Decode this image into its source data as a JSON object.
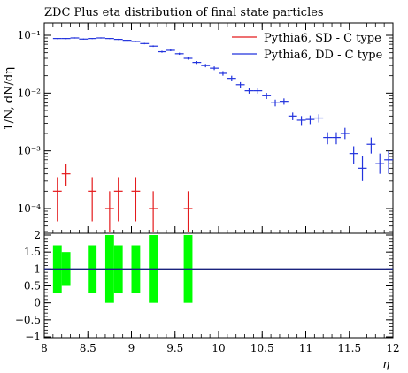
{
  "chart_data": {
    "type": "scatter",
    "title": "ZDC Plus eta distribution of final state particles",
    "xlabel": "η",
    "ylabel": "1/N, dN/dη",
    "xlim": [
      8,
      12
    ],
    "ylim": [
      4e-05,
      0.13
    ],
    "log_y": true,
    "legend_position": "top-right",
    "x_ticks": [
      "8",
      "8.5",
      "9",
      "9.5",
      "10",
      "10.5",
      "11",
      "11.5",
      "12"
    ],
    "y_ticks": [
      "10⁻⁴",
      "10⁻³",
      "10⁻²",
      "10⁻¹"
    ],
    "series": [
      {
        "name": "Pythia6, SD - C type",
        "color": "#e41a1c",
        "points": [
          {
            "x": 8.15,
            "y": 0.0002,
            "ylo": 6e-05,
            "yhi": 0.00035,
            "xerr": 0.05
          },
          {
            "x": 8.25,
            "y": 0.0004,
            "ylo": 0.00025,
            "yhi": 0.0006,
            "xerr": 0.05
          },
          {
            "x": 8.55,
            "y": 0.0002,
            "ylo": 6e-05,
            "yhi": 0.00035,
            "xerr": 0.05
          },
          {
            "x": 8.75,
            "y": 0.0001,
            "ylo": 4e-05,
            "yhi": 0.0002,
            "xerr": 0.05
          },
          {
            "x": 8.85,
            "y": 0.0002,
            "ylo": 6e-05,
            "yhi": 0.00035,
            "xerr": 0.05
          },
          {
            "x": 9.05,
            "y": 0.0002,
            "ylo": 6e-05,
            "yhi": 0.00035,
            "xerr": 0.05
          },
          {
            "x": 9.25,
            "y": 0.0001,
            "ylo": 4e-05,
            "yhi": 0.0002,
            "xerr": 0.05
          },
          {
            "x": 9.65,
            "y": 0.0001,
            "ylo": 4e-05,
            "yhi": 0.0002,
            "xerr": 0.05
          }
        ]
      },
      {
        "name": "Pythia6, DD - C type",
        "color": "#2233dd",
        "points": [
          {
            "x": 8.15,
            "y": 0.088,
            "ylo": 0.086,
            "yhi": 0.09,
            "xerr": 0.05
          },
          {
            "x": 8.25,
            "y": 0.088,
            "ylo": 0.086,
            "yhi": 0.09,
            "xerr": 0.05
          },
          {
            "x": 8.35,
            "y": 0.09,
            "ylo": 0.088,
            "yhi": 0.092,
            "xerr": 0.05
          },
          {
            "x": 8.45,
            "y": 0.086,
            "ylo": 0.084,
            "yhi": 0.088,
            "xerr": 0.05
          },
          {
            "x": 8.55,
            "y": 0.088,
            "ylo": 0.086,
            "yhi": 0.09,
            "xerr": 0.05
          },
          {
            "x": 8.65,
            "y": 0.09,
            "ylo": 0.088,
            "yhi": 0.092,
            "xerr": 0.05
          },
          {
            "x": 8.75,
            "y": 0.088,
            "ylo": 0.086,
            "yhi": 0.09,
            "xerr": 0.05
          },
          {
            "x": 8.85,
            "y": 0.085,
            "ylo": 0.083,
            "yhi": 0.087,
            "xerr": 0.05
          },
          {
            "x": 8.95,
            "y": 0.082,
            "ylo": 0.08,
            "yhi": 0.084,
            "xerr": 0.05
          },
          {
            "x": 9.05,
            "y": 0.078,
            "ylo": 0.076,
            "yhi": 0.08,
            "xerr": 0.05
          },
          {
            "x": 9.15,
            "y": 0.072,
            "ylo": 0.07,
            "yhi": 0.074,
            "xerr": 0.05
          },
          {
            "x": 9.25,
            "y": 0.065,
            "ylo": 0.063,
            "yhi": 0.067,
            "xerr": 0.05
          },
          {
            "x": 9.35,
            "y": 0.052,
            "ylo": 0.05,
            "yhi": 0.054,
            "xerr": 0.05
          },
          {
            "x": 9.45,
            "y": 0.055,
            "ylo": 0.053,
            "yhi": 0.057,
            "xerr": 0.05
          },
          {
            "x": 9.55,
            "y": 0.048,
            "ylo": 0.046,
            "yhi": 0.05,
            "xerr": 0.05
          },
          {
            "x": 9.65,
            "y": 0.04,
            "ylo": 0.038,
            "yhi": 0.042,
            "xerr": 0.05
          },
          {
            "x": 9.75,
            "y": 0.034,
            "ylo": 0.032,
            "yhi": 0.036,
            "xerr": 0.05
          },
          {
            "x": 9.85,
            "y": 0.03,
            "ylo": 0.028,
            "yhi": 0.032,
            "xerr": 0.05
          },
          {
            "x": 9.95,
            "y": 0.027,
            "ylo": 0.025,
            "yhi": 0.029,
            "xerr": 0.05
          },
          {
            "x": 10.05,
            "y": 0.022,
            "ylo": 0.02,
            "yhi": 0.024,
            "xerr": 0.05
          },
          {
            "x": 10.15,
            "y": 0.018,
            "ylo": 0.016,
            "yhi": 0.02,
            "xerr": 0.05
          },
          {
            "x": 10.25,
            "y": 0.014,
            "ylo": 0.0125,
            "yhi": 0.0155,
            "xerr": 0.05
          },
          {
            "x": 10.35,
            "y": 0.011,
            "ylo": 0.0098,
            "yhi": 0.0122,
            "xerr": 0.05
          },
          {
            "x": 10.45,
            "y": 0.011,
            "ylo": 0.0098,
            "yhi": 0.0122,
            "xerr": 0.05
          },
          {
            "x": 10.55,
            "y": 0.009,
            "ylo": 0.0079,
            "yhi": 0.0101,
            "xerr": 0.05
          },
          {
            "x": 10.65,
            "y": 0.0068,
            "ylo": 0.0059,
            "yhi": 0.0077,
            "xerr": 0.05
          },
          {
            "x": 10.75,
            "y": 0.0072,
            "ylo": 0.0063,
            "yhi": 0.0081,
            "xerr": 0.05
          },
          {
            "x": 10.85,
            "y": 0.004,
            "ylo": 0.0034,
            "yhi": 0.0046,
            "xerr": 0.05
          },
          {
            "x": 10.95,
            "y": 0.0034,
            "ylo": 0.0028,
            "yhi": 0.004,
            "xerr": 0.05
          },
          {
            "x": 11.05,
            "y": 0.0035,
            "ylo": 0.0029,
            "yhi": 0.0041,
            "xerr": 0.05
          },
          {
            "x": 11.15,
            "y": 0.0037,
            "ylo": 0.0031,
            "yhi": 0.0043,
            "xerr": 0.05
          },
          {
            "x": 11.25,
            "y": 0.0017,
            "ylo": 0.0013,
            "yhi": 0.0021,
            "xerr": 0.05
          },
          {
            "x": 11.35,
            "y": 0.0017,
            "ylo": 0.0013,
            "yhi": 0.0021,
            "xerr": 0.05
          },
          {
            "x": 11.45,
            "y": 0.002,
            "ylo": 0.0016,
            "yhi": 0.0025,
            "xerr": 0.05
          },
          {
            "x": 11.55,
            "y": 0.0009,
            "ylo": 0.0006,
            "yhi": 0.0012,
            "xerr": 0.05
          },
          {
            "x": 11.65,
            "y": 0.0005,
            "ylo": 0.0003,
            "yhi": 0.0008,
            "xerr": 0.05
          },
          {
            "x": 11.75,
            "y": 0.0013,
            "ylo": 0.0009,
            "yhi": 0.0017,
            "xerr": 0.05
          },
          {
            "x": 11.85,
            "y": 0.0006,
            "ylo": 0.0004,
            "yhi": 0.0009,
            "xerr": 0.05
          },
          {
            "x": 11.95,
            "y": 0.0007,
            "ylo": 0.0004,
            "yhi": 0.001,
            "xerr": 0.05
          }
        ]
      }
    ],
    "ratio_panel": {
      "ylim": [
        -1,
        2
      ],
      "y_ticks": [
        "2",
        "1.5",
        "1",
        "0.5",
        "0",
        "−0.5",
        "−1"
      ],
      "reference_line": 1,
      "reference_color": "#1a237e",
      "band_color": "#00ff00",
      "bands": [
        {
          "x": 8.15,
          "lo": 0.3,
          "hi": 1.7,
          "xerr": 0.05
        },
        {
          "x": 8.25,
          "lo": 0.5,
          "hi": 1.5,
          "xerr": 0.05
        },
        {
          "x": 8.55,
          "lo": 0.3,
          "hi": 1.7,
          "xerr": 0.05
        },
        {
          "x": 8.75,
          "lo": 0.0,
          "hi": 2.0,
          "xerr": 0.05
        },
        {
          "x": 8.85,
          "lo": 0.3,
          "hi": 1.7,
          "xerr": 0.05
        },
        {
          "x": 9.05,
          "lo": 0.3,
          "hi": 1.7,
          "xerr": 0.05
        },
        {
          "x": 9.25,
          "lo": 0.0,
          "hi": 2.0,
          "xerr": 0.05
        },
        {
          "x": 9.65,
          "lo": 0.0,
          "hi": 2.0,
          "xerr": 0.05
        }
      ]
    }
  }
}
